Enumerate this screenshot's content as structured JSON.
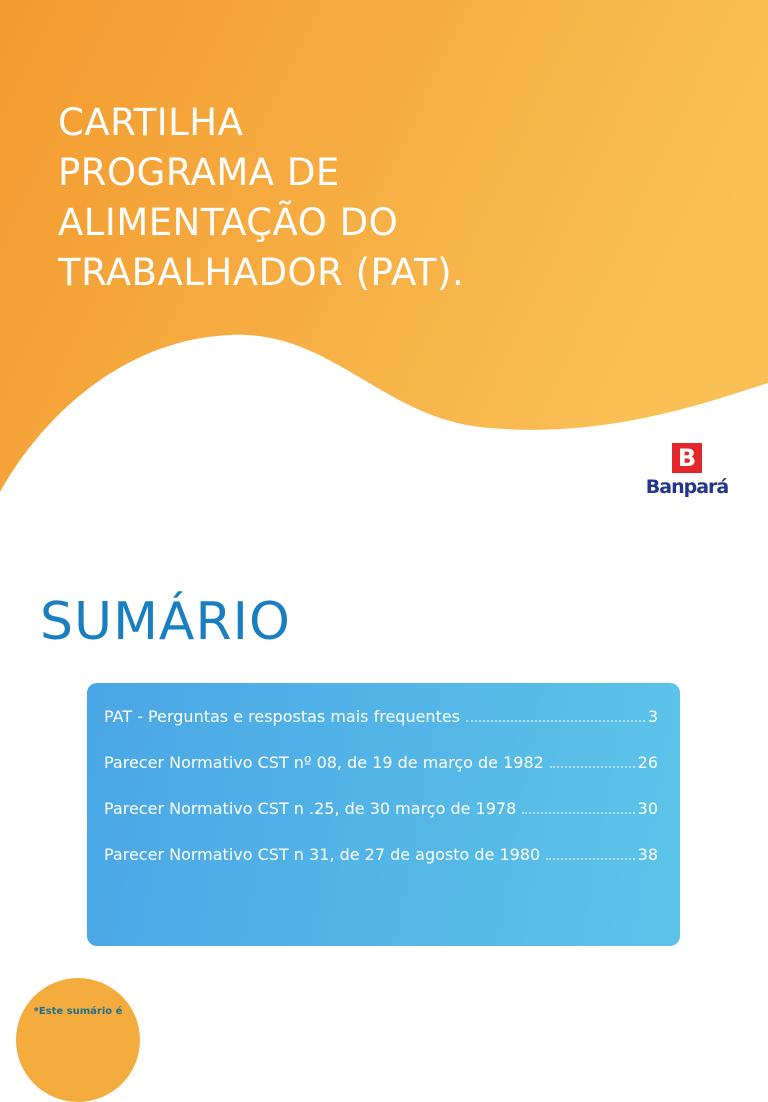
{
  "header": {
    "title_lines": [
      "CARTILHA",
      "PROGRAMA DE",
      "ALIMENTAÇÃO DO",
      "TRABALHADOR (PAT)."
    ],
    "colors": {
      "gradient_start": "#f39a2e",
      "gradient_end": "#f9c056"
    }
  },
  "logo": {
    "brand": "Banpará",
    "colors": {
      "mark": "#e3262a",
      "text": "#23358c"
    }
  },
  "summary": {
    "heading": "SUMÁRIO",
    "items": [
      {
        "label": "PAT - Perguntas e respostas mais frequentes",
        "page": "3"
      },
      {
        "label": "Parecer Normativo CST nº 08, de 19 de março de 1982",
        "page": "26"
      },
      {
        "label": "Parecer Normativo CST n  .25, de 30 março de 1978",
        "page": "30"
      },
      {
        "label": "Parecer Normativo CST n  31, de 27 de agosto de 1980",
        "page": "38"
      }
    ],
    "note": "*Este sumário é"
  }
}
